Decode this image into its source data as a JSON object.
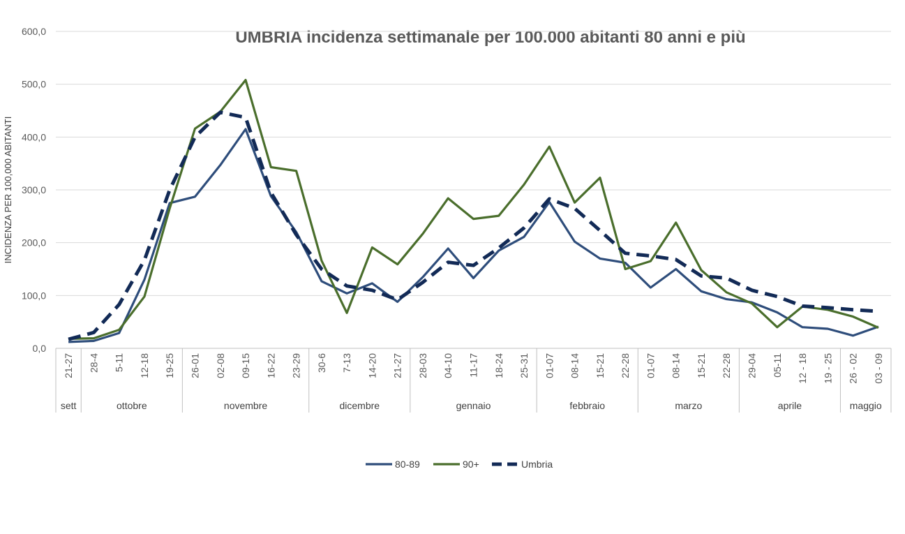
{
  "chart_data": {
    "type": "line",
    "title": "UMBRIA incidenza settimanale per 100.000 abitanti 80 anni e più",
    "ylabel": "INCIDENZA PER 100,000 ABITANTI",
    "xlabel": "",
    "ylim": [
      0,
      600
    ],
    "yticks": [
      "0,0",
      "100,0",
      "200,0",
      "300,0",
      "400,0",
      "500,0",
      "600,0"
    ],
    "grid": true,
    "legend_position": "bottom",
    "categories": [
      "21-27",
      "28-4",
      "5-11",
      "12-18",
      "19-25",
      "26-01",
      "02-08",
      "09-15",
      "16-22",
      "23-29",
      "30-6",
      "7-13",
      "14-20",
      "21-27",
      "28-03",
      "04-10",
      "11-17",
      "18-24",
      "25-31",
      "01-07",
      "08-14",
      "15-21",
      "22-28",
      "01-07",
      "08-14",
      "15-21",
      "22-28",
      "29-04",
      "05-11",
      "12 - 18",
      "19 - 25",
      "26 - 02",
      "03 - 09"
    ],
    "month_groups": [
      {
        "label": "sett",
        "count": 1
      },
      {
        "label": "ottobre",
        "count": 4
      },
      {
        "label": "novembre",
        "count": 5
      },
      {
        "label": "dicembre",
        "count": 4
      },
      {
        "label": "gennaio",
        "count": 5
      },
      {
        "label": "febbraio",
        "count": 4
      },
      {
        "label": "marzo",
        "count": 4
      },
      {
        "label": "aprile",
        "count": 4
      },
      {
        "label": "maggio",
        "count": 2
      }
    ],
    "series": [
      {
        "name": "80-89",
        "color": "#2e4d7b",
        "dash": false,
        "values": [
          12,
          14,
          29,
          130,
          275,
          287,
          347,
          415,
          288,
          220,
          127,
          104,
          123,
          88,
          135,
          189,
          133,
          185,
          211,
          277,
          202,
          170,
          162,
          115,
          150,
          108,
          93,
          87,
          68,
          40,
          37,
          24,
          41
        ]
      },
      {
        "name": "90+",
        "color": "#4a6e2c",
        "dash": false,
        "values": [
          18,
          19,
          35,
          98,
          265,
          416,
          448,
          508,
          343,
          336,
          166,
          67,
          191,
          159,
          217,
          284,
          245,
          251,
          310,
          382,
          276,
          323,
          150,
          165,
          238,
          148,
          106,
          85,
          40,
          79,
          73,
          60,
          39
        ]
      },
      {
        "name": "Umbria",
        "color": "#122a56",
        "dash": true,
        "values": [
          17,
          30,
          83,
          167,
          300,
          400,
          447,
          437,
          295,
          215,
          150,
          118,
          110,
          92,
          125,
          163,
          157,
          190,
          228,
          283,
          265,
          223,
          180,
          175,
          168,
          137,
          133,
          110,
          98,
          80,
          77,
          73,
          70
        ]
      }
    ]
  }
}
